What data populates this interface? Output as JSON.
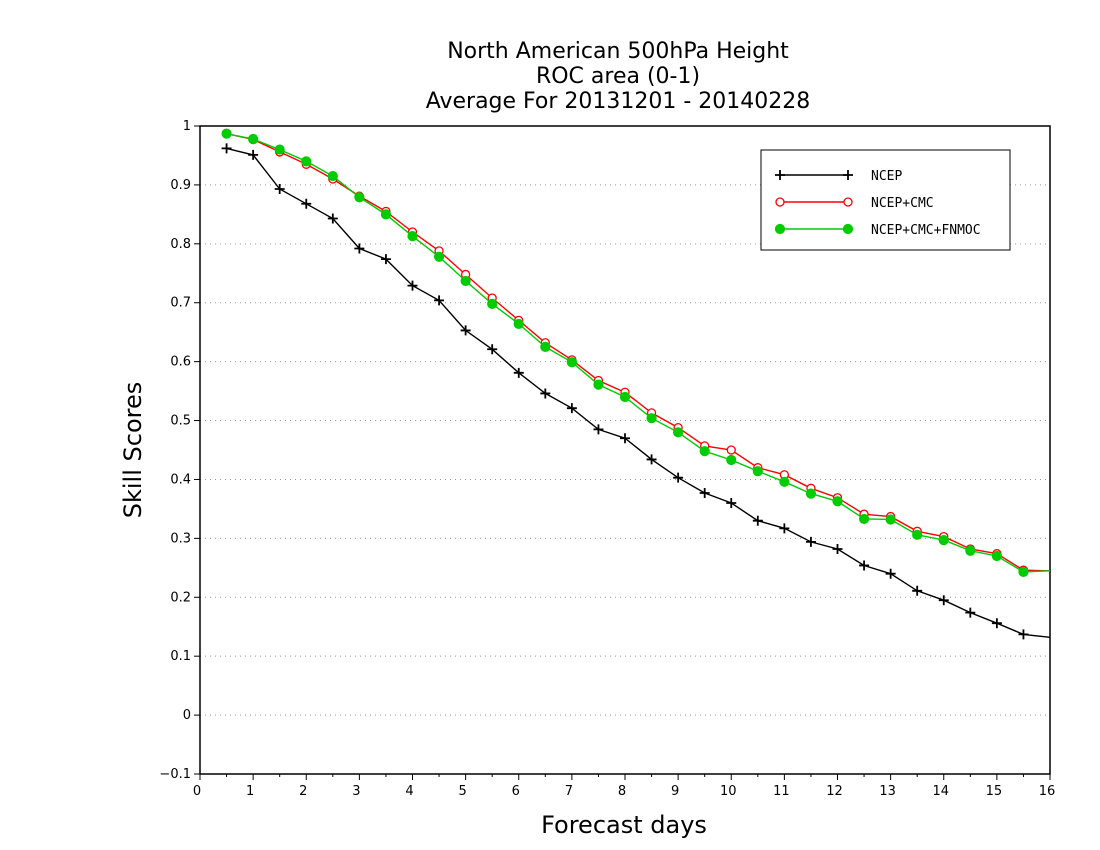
{
  "chart_data": {
    "type": "line",
    "title": [
      "North American 500hPa Height",
      "ROC area (0-1)",
      "Average For 20131201 - 20140228"
    ],
    "xlabel": "Forecast days",
    "ylabel": "Skill Scores",
    "xlim": [
      0,
      16
    ],
    "ylim": [
      -0.1,
      1
    ],
    "xticks": [
      "0",
      "1",
      "2",
      "3",
      "4",
      "5",
      "6",
      "7",
      "8",
      "9",
      "10",
      "11",
      "12",
      "13",
      "14",
      "15",
      "16"
    ],
    "yticks": [
      "−0.1",
      "0",
      "0.1",
      "0.2",
      "0.3",
      "0.4",
      "0.5",
      "0.6",
      "0.7",
      "0.8",
      "0.9",
      "1"
    ],
    "ytick_values": [
      -0.1,
      0,
      0.1,
      0.2,
      0.3,
      0.4,
      0.5,
      0.6,
      0.7,
      0.8,
      0.9,
      1
    ],
    "grid": "horizontal-dotted",
    "legend_position": "top-right",
    "x": [
      0.5,
      1,
      1.5,
      2,
      2.5,
      3,
      3.5,
      4,
      4.5,
      5,
      5.5,
      6,
      6.5,
      7,
      7.5,
      8,
      8.5,
      9,
      9.5,
      10,
      10.5,
      11,
      11.5,
      12,
      12.5,
      13,
      13.5,
      14,
      14.5,
      15,
      15.5,
      16
    ],
    "series": [
      {
        "name": "NCEP",
        "color": "#000000",
        "marker": "plus",
        "values": [
          0.962,
          0.951,
          0.893,
          0.868,
          0.843,
          0.792,
          0.774,
          0.729,
          0.704,
          0.653,
          0.621,
          0.581,
          0.546,
          0.521,
          0.485,
          0.47,
          0.434,
          0.403,
          0.377,
          0.36,
          0.33,
          0.317,
          0.294,
          0.282,
          0.254,
          0.24,
          0.211,
          0.195,
          0.174,
          0.156,
          0.137,
          0.132
        ]
      },
      {
        "name": "NCEP+CMC",
        "color": "#ff0000",
        "marker": "open-circle",
        "values": [
          0.987,
          0.977,
          0.956,
          0.935,
          0.91,
          0.881,
          0.855,
          0.82,
          0.788,
          0.748,
          0.708,
          0.67,
          0.632,
          0.603,
          0.568,
          0.548,
          0.513,
          0.488,
          0.457,
          0.45,
          0.42,
          0.408,
          0.385,
          0.369,
          0.341,
          0.337,
          0.312,
          0.303,
          0.282,
          0.274,
          0.246,
          0.245
        ]
      },
      {
        "name": "NCEP+CMC+FNMOC",
        "color": "#00cc00",
        "marker": "filled-circle",
        "values": [
          0.987,
          0.978,
          0.96,
          0.94,
          0.915,
          0.879,
          0.85,
          0.813,
          0.778,
          0.737,
          0.698,
          0.664,
          0.625,
          0.599,
          0.561,
          0.54,
          0.504,
          0.48,
          0.448,
          0.433,
          0.414,
          0.396,
          0.376,
          0.363,
          0.333,
          0.332,
          0.306,
          0.297,
          0.279,
          0.27,
          0.243,
          0.245
        ]
      }
    ]
  }
}
